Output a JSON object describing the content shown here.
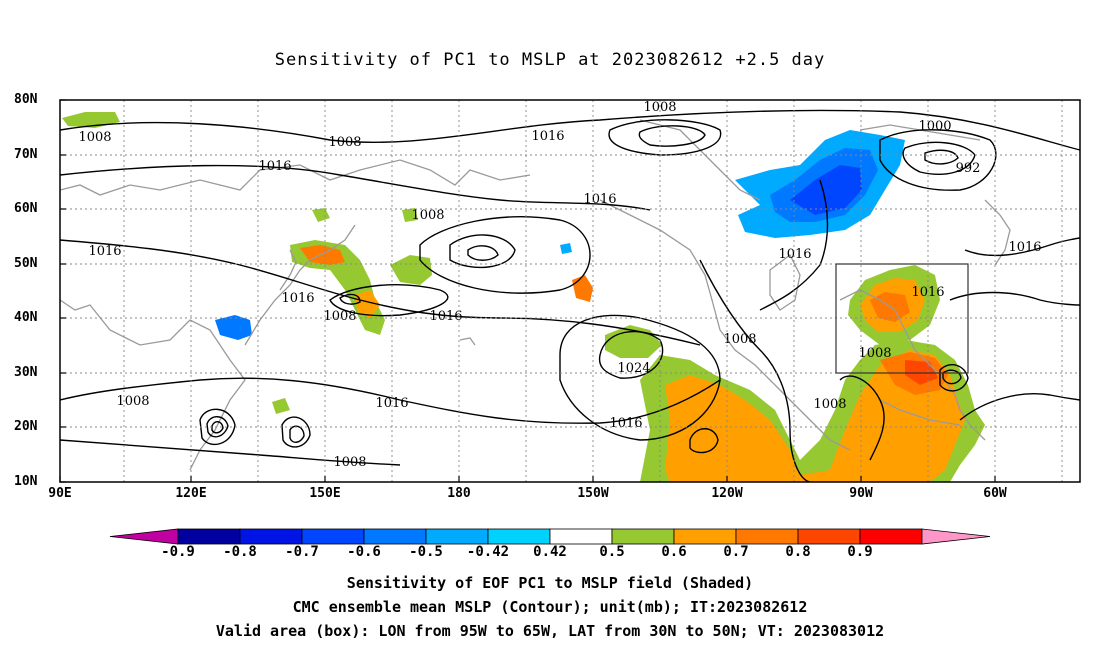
{
  "title": "Sensitivity of PC1 to MSLP at 2023082612 +2.5 day",
  "lat_ticks": [
    "80N",
    "70N",
    "60N",
    "50N",
    "40N",
    "30N",
    "20N",
    "10N"
  ],
  "lon_ticks": [
    "90E",
    "120E",
    "150E",
    "180",
    "150W",
    "120W",
    "90W",
    "60W"
  ],
  "colorbar": {
    "labels": [
      "-0.9",
      "-0.8",
      "-0.7",
      "-0.6",
      "-0.5",
      "-0.42",
      "0.42",
      "0.5",
      "0.6",
      "0.7",
      "0.8",
      "0.9"
    ],
    "colors": [
      "#c000a0",
      "#0000a0",
      "#0014e6",
      "#0046ff",
      "#0078ff",
      "#00aaff",
      "#00d2ff",
      "#ffffff",
      "#96c832",
      "#ffa000",
      "#ff7800",
      "#ff4600",
      "#ff0000",
      "#ff96c8"
    ]
  },
  "contour_labels": [
    {
      "text": "1008"
    },
    {
      "text": "1008"
    },
    {
      "text": "1016"
    },
    {
      "text": "1016"
    },
    {
      "text": "1008"
    },
    {
      "text": "1016"
    },
    {
      "text": "1000"
    },
    {
      "text": "992"
    },
    {
      "text": "1016"
    },
    {
      "text": "1008"
    },
    {
      "text": "1016"
    },
    {
      "text": "1016"
    },
    {
      "text": "1016"
    },
    {
      "text": "1008"
    },
    {
      "text": "1016"
    },
    {
      "text": "1016"
    },
    {
      "text": "1008"
    },
    {
      "text": "1008"
    },
    {
      "text": "1024"
    },
    {
      "text": "1008"
    },
    {
      "text": "1016"
    },
    {
      "text": "1016"
    },
    {
      "text": "1008"
    },
    {
      "text": "1008"
    }
  ],
  "captions": [
    "Sensitivity of EOF PC1 to MSLP field (Shaded)",
    "CMC ensemble mean MSLP (Contour); unit(mb); IT:2023082612",
    "Valid area (box): LON from 95W to 65W, LAT from 30N to 50N; VT: 2023083012"
  ]
}
